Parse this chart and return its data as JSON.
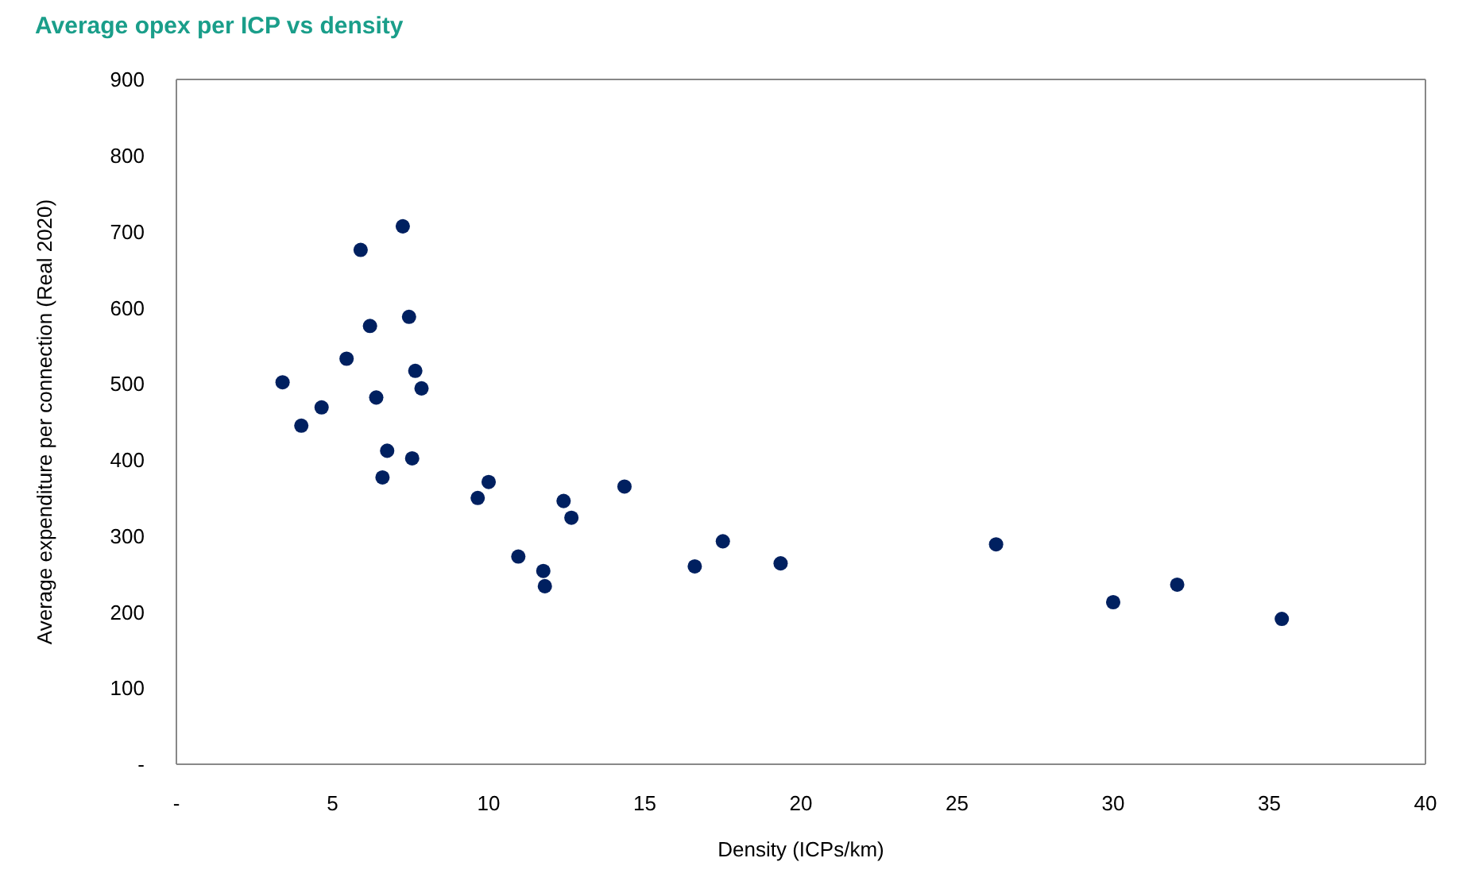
{
  "chart_data": {
    "type": "scatter",
    "title": "Average opex per ICP vs density",
    "xlabel": "Density (ICPs/km)",
    "ylabel": "Average expenditure per connection (Real 2020)",
    "xlim": [
      0,
      40
    ],
    "xticks": [
      {
        "value": 0,
        "label": "-"
      },
      5,
      10,
      15,
      20,
      25,
      30,
      35,
      40
    ],
    "ylim": [
      0,
      900
    ],
    "yticks": [
      {
        "value": 0,
        "label": "-"
      },
      100,
      200,
      300,
      400,
      500,
      600,
      700,
      800,
      900
    ],
    "marker": "circle",
    "series": [
      {
        "color": "#002060",
        "x": [
          3.4,
          4.0,
          4.65,
          5.45,
          5.9,
          6.2,
          6.4,
          6.6,
          6.75,
          7.25,
          7.45,
          7.55,
          7.65,
          7.85,
          9.65,
          10.0,
          10.95,
          11.75,
          11.8,
          12.4,
          12.65,
          14.35,
          16.6,
          17.5,
          19.35,
          26.25,
          30.0,
          32.05,
          35.4
        ],
        "values": [
          502,
          445,
          469,
          533,
          676,
          576,
          482,
          377,
          412,
          707,
          588,
          402,
          517,
          494,
          350,
          371,
          273,
          254,
          234,
          346,
          324,
          365,
          260,
          293,
          264,
          289,
          213,
          236,
          191
        ]
      }
    ]
  }
}
